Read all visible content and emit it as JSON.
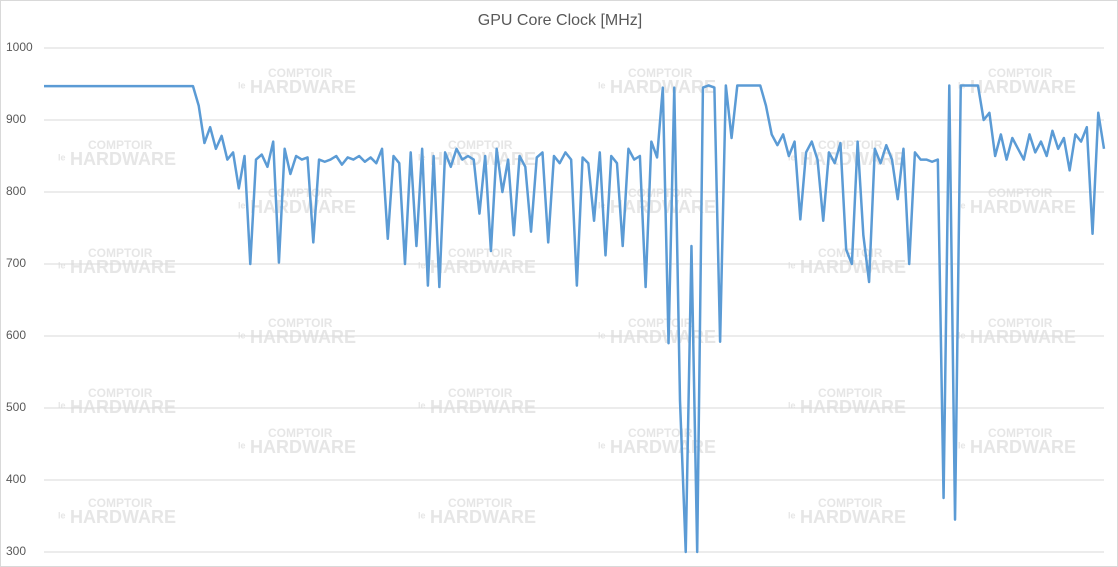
{
  "chart_data": {
    "type": "line",
    "title": "GPU Core Clock [MHz]",
    "watermark": {
      "prefix": "le",
      "line1": "COMPTOIR",
      "line2": "HARDWARE"
    },
    "ylim": [
      300,
      1000
    ],
    "yticks": [
      300,
      400,
      500,
      600,
      700,
      800,
      900,
      1000
    ],
    "grid": true,
    "series": [
      {
        "color": "#5b9bd5",
        "values": [
          947,
          947,
          947,
          947,
          947,
          947,
          947,
          947,
          947,
          947,
          947,
          947,
          947,
          947,
          947,
          947,
          947,
          947,
          947,
          947,
          947,
          947,
          947,
          947,
          947,
          947,
          947,
          920,
          868,
          890,
          860,
          878,
          845,
          855,
          805,
          850,
          700,
          845,
          852,
          835,
          870,
          702,
          860,
          825,
          850,
          845,
          848,
          730,
          845,
          842,
          845,
          850,
          838,
          848,
          845,
          850,
          842,
          848,
          840,
          860,
          735,
          850,
          840,
          700,
          855,
          725,
          860,
          670,
          850,
          668,
          855,
          835,
          860,
          845,
          850,
          845,
          770,
          850,
          718,
          860,
          800,
          845,
          740,
          850,
          835,
          745,
          848,
          855,
          730,
          850,
          840,
          855,
          845,
          670,
          848,
          840,
          760,
          855,
          712,
          850,
          840,
          725,
          860,
          845,
          850,
          668,
          870,
          848,
          945,
          590,
          945,
          510,
          300,
          725,
          300,
          945,
          948,
          945,
          592,
          948,
          875,
          948,
          948,
          948,
          948,
          948,
          920,
          880,
          865,
          880,
          850,
          870,
          762,
          855,
          870,
          845,
          760,
          855,
          840,
          868,
          720,
          700,
          870,
          740,
          675,
          860,
          840,
          865,
          845,
          790,
          860,
          700,
          855,
          845,
          845,
          842,
          845,
          375,
          948,
          345,
          948,
          948,
          948,
          948,
          900,
          910,
          850,
          880,
          845,
          875,
          860,
          845,
          880,
          855,
          870,
          850,
          885,
          860,
          875,
          830,
          880,
          870,
          890,
          742,
          910,
          860
        ]
      }
    ]
  }
}
